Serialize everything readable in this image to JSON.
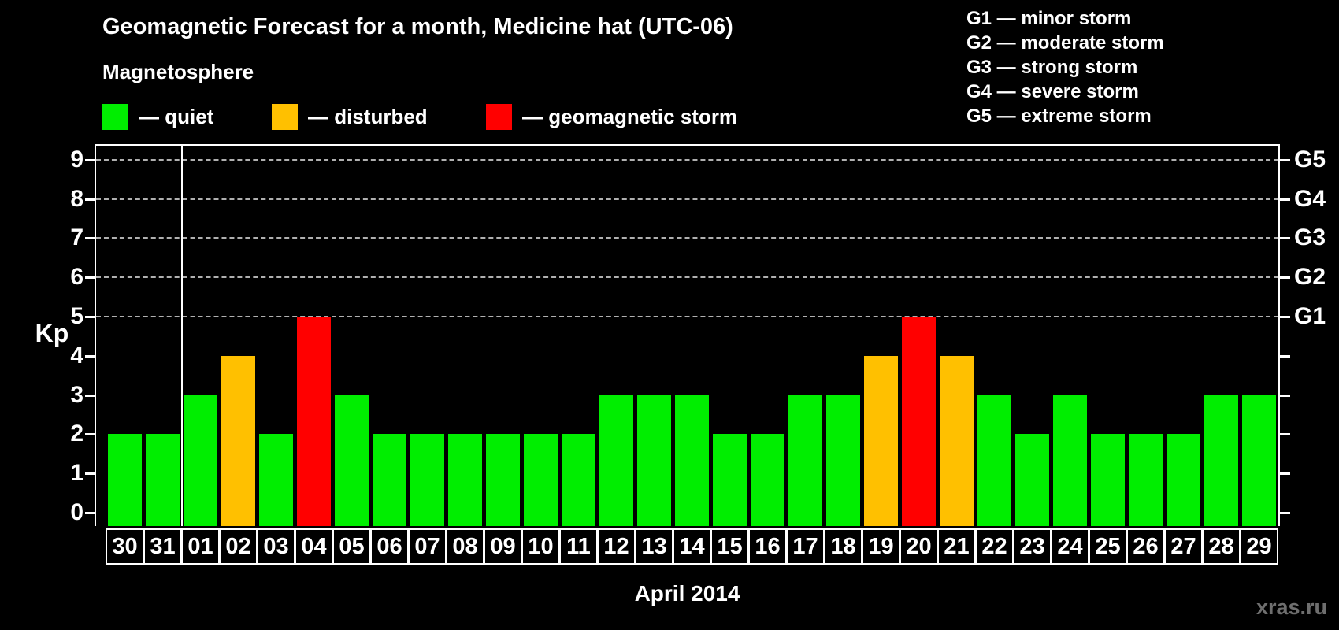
{
  "header": {
    "title": "Geomagnetic Forecast for a month, Medicine hat (UTC-06)",
    "subtitle": "Magnetosphere"
  },
  "legend": {
    "items": [
      {
        "name": "quiet",
        "label": "— quiet",
        "color": "#00ee00"
      },
      {
        "name": "disturbed",
        "label": "— disturbed",
        "color": "#ffc000"
      },
      {
        "name": "storm",
        "label": "— geomagnetic storm",
        "color": "#ff0000"
      }
    ]
  },
  "g_legend": {
    "lines": [
      "G1 — minor storm",
      "G2 — moderate storm",
      "G3 — strong storm",
      "G4 — severe storm",
      "G5 — extreme storm"
    ]
  },
  "chart_data": {
    "type": "bar",
    "title": "Geomagnetic Forecast for a month, Medicine hat (UTC-06)",
    "xlabel": "April 2014",
    "ylabel": "Kp",
    "ylim": [
      0,
      9
    ],
    "grid": "dashed horizontal lines at Kp 5-9 only",
    "legend_position": "top",
    "categories": [
      "30",
      "31",
      "01",
      "02",
      "03",
      "04",
      "05",
      "06",
      "07",
      "08",
      "09",
      "10",
      "11",
      "12",
      "13",
      "14",
      "15",
      "16",
      "17",
      "18",
      "19",
      "20",
      "21",
      "22",
      "23",
      "24",
      "25",
      "26",
      "27",
      "28",
      "29"
    ],
    "values": [
      2,
      2,
      3,
      4,
      2,
      5,
      3,
      2,
      2,
      2,
      2,
      2,
      2,
      3,
      3,
      3,
      2,
      2,
      3,
      3,
      4,
      5,
      4,
      3,
      2,
      3,
      2,
      2,
      2,
      3,
      3
    ],
    "statuses": [
      "quiet",
      "quiet",
      "quiet",
      "disturbed",
      "quiet",
      "storm",
      "quiet",
      "quiet",
      "quiet",
      "quiet",
      "quiet",
      "quiet",
      "quiet",
      "quiet",
      "quiet",
      "quiet",
      "quiet",
      "quiet",
      "quiet",
      "quiet",
      "disturbed",
      "storm",
      "disturbed",
      "quiet",
      "quiet",
      "quiet",
      "quiet",
      "quiet",
      "quiet",
      "quiet",
      "quiet"
    ],
    "status_colors": {
      "quiet": "#00ee00",
      "disturbed": "#ffc000",
      "storm": "#ff0000"
    },
    "gridline_levels": [
      5,
      6,
      7,
      8,
      9
    ],
    "right_axis_labels": [
      {
        "label": "G5",
        "level": 9
      },
      {
        "label": "G4",
        "level": 8
      },
      {
        "label": "G3",
        "level": 7
      },
      {
        "label": "G2",
        "level": 6
      },
      {
        "label": "G1",
        "level": 5
      }
    ],
    "month_separator_after": "31"
  },
  "watermark": "xras.ru"
}
